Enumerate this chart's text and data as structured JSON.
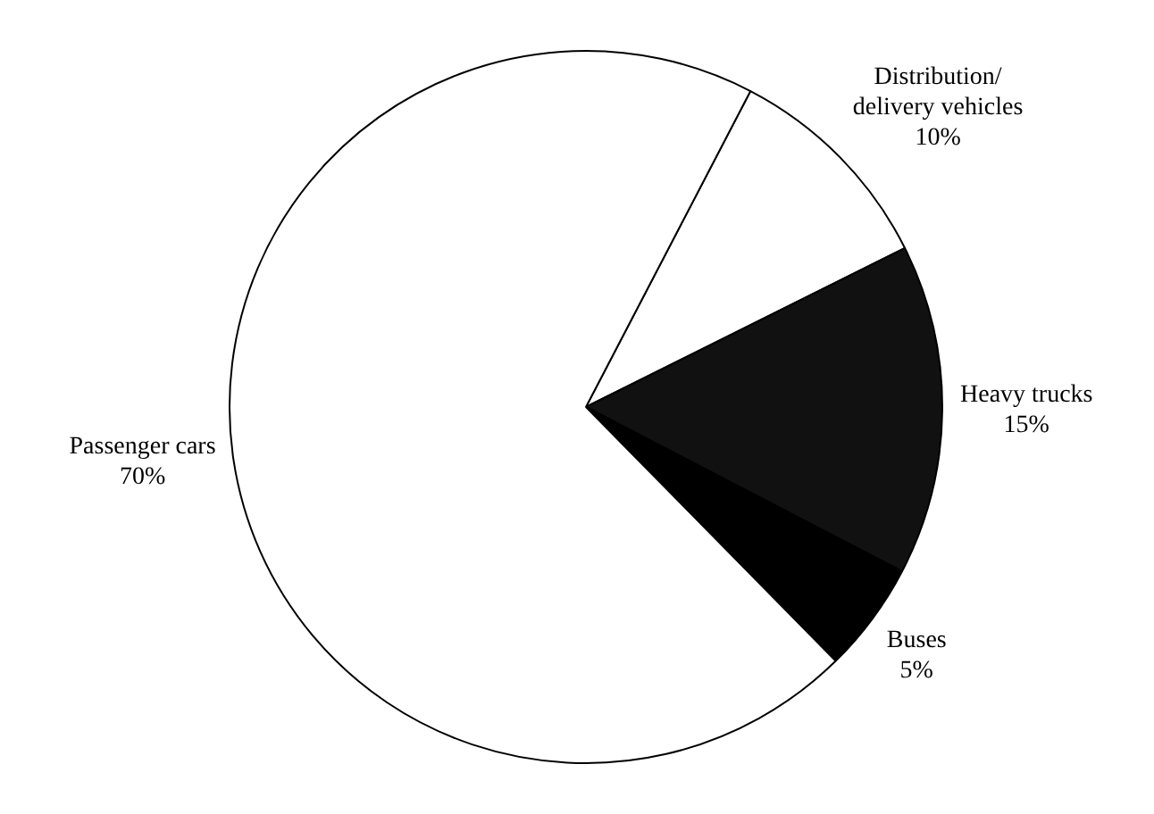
{
  "chart_data": {
    "type": "pie",
    "categories": [
      "Distribution/delivery vehicles",
      "Heavy trucks",
      "Buses",
      "Passenger cars"
    ],
    "values": [
      10,
      15,
      5,
      70
    ],
    "colors": [
      "#ffffff",
      "#111111",
      "#000000",
      "#ffffff"
    ],
    "value_labels": [
      "10%",
      "15%",
      "5%",
      "70%"
    ],
    "legend": false
  }
}
